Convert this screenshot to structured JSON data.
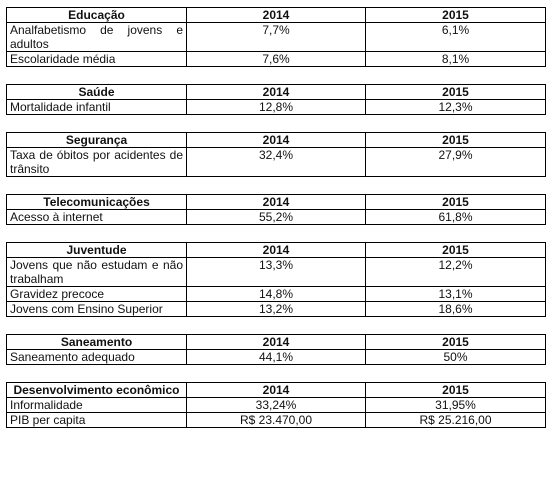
{
  "tables": [
    {
      "header": [
        "Educação",
        "2014",
        "2015"
      ],
      "rows": [
        [
          "Analfabetismo de jovens e adultos",
          "7,7%",
          "6,1%"
        ],
        [
          "Escolaridade média",
          "7,6%",
          "8,1%"
        ]
      ]
    },
    {
      "header": [
        "Saúde",
        "2014",
        "2015"
      ],
      "rows": [
        [
          "Mortalidade infantil",
          "12,8%",
          "12,3%"
        ]
      ]
    },
    {
      "header": [
        "Segurança",
        "2014",
        "2015"
      ],
      "rows": [
        [
          "Taxa de óbitos por acidentes de trânsito",
          "32,4%",
          "27,9%"
        ]
      ]
    },
    {
      "header": [
        "Telecomunicações",
        "2014",
        "2015"
      ],
      "rows": [
        [
          "Acesso à internet",
          "55,2%",
          "61,8%"
        ]
      ]
    },
    {
      "header": [
        "Juventude",
        "2014",
        "2015"
      ],
      "rows": [
        [
          "Jovens que não estudam e não trabalham",
          "13,3%",
          "12,2%"
        ],
        [
          "Gravidez precoce",
          "14,8%",
          "13,1%"
        ],
        [
          "Jovens com Ensino Superior",
          "13,2%",
          "18,6%"
        ]
      ]
    },
    {
      "header": [
        "Saneamento",
        "2014",
        "2015"
      ],
      "rows": [
        [
          "Saneamento adequado",
          "44,1%",
          "50%"
        ]
      ]
    },
    {
      "header": [
        "Desenvolvimento econômico",
        "2014",
        "2015"
      ],
      "rows": [
        [
          "Informalidade",
          "33,24%",
          "31,95%"
        ],
        [
          "PIB per capita",
          "R$ 23.470,00",
          "R$ 25.216,00"
        ]
      ]
    }
  ]
}
